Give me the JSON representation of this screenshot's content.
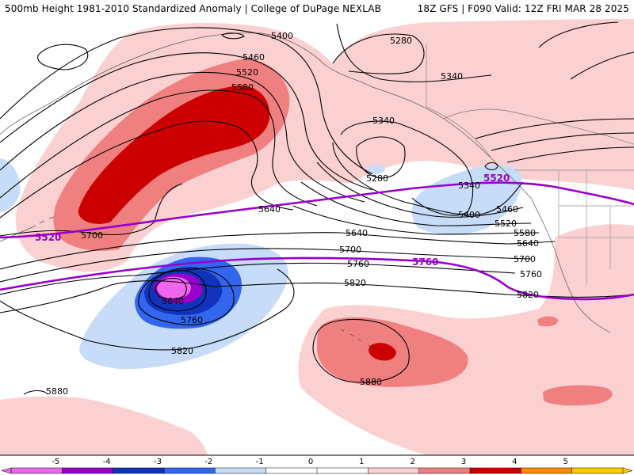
{
  "header": {
    "title": "500mb Height 1981-2010 Standardized Anomaly | College of DuPage NEXLAB",
    "run_info": "18Z GFS | F090 Valid: 12Z FRI MAR 28 2025"
  },
  "colors": {
    "minus5": "#ee66ee",
    "minus4": "#9900cc",
    "minus3": "#1133bb",
    "minus2": "#3366ee",
    "minus1": "#c6dcf8",
    "zero": "#ffffff",
    "plus1": "#fbd0d0",
    "plus2": "#f08080",
    "plus3": "#cc0000",
    "plus4": "#ff8c00",
    "plus5": "#ffcc00",
    "reference_contour": "#9900cc",
    "height_contour": "#000000"
  },
  "colorbar": {
    "ticks": [
      "-5",
      "-4",
      "-3",
      "-2",
      "-1",
      "0",
      "1",
      "2",
      "3",
      "4",
      "5"
    ]
  },
  "contour_labels": {
    "l5400_a": "5400",
    "l5460_a": "5460",
    "l5520_a": "5520",
    "l5580_a": "5580",
    "l5280_a": "5280",
    "l5340_a": "5340",
    "l5340_b": "5340",
    "l5280_b": "5280",
    "l5340_c": "5340",
    "l5400_b": "5400",
    "l5460_b": "5460",
    "l5520_b": "5520",
    "l5580_b": "5580",
    "l5640_a": "5640",
    "l5700_a": "5700",
    "l5640_b": "5640",
    "l5700_b": "5700",
    "l5640_c": "5640",
    "l5700_c": "5700",
    "l5760_a": "5760",
    "l5820_a": "5820",
    "l5760_b": "5760",
    "l5640_d": "5640",
    "l5760_c": "5760",
    "l5820_b": "5820",
    "l5820_c": "5820",
    "l5880_a": "5880",
    "l5880_b": "5880"
  },
  "reference_labels": {
    "ref5520_west": "5520",
    "ref5520_east": "5520",
    "ref5760": "5760"
  }
}
